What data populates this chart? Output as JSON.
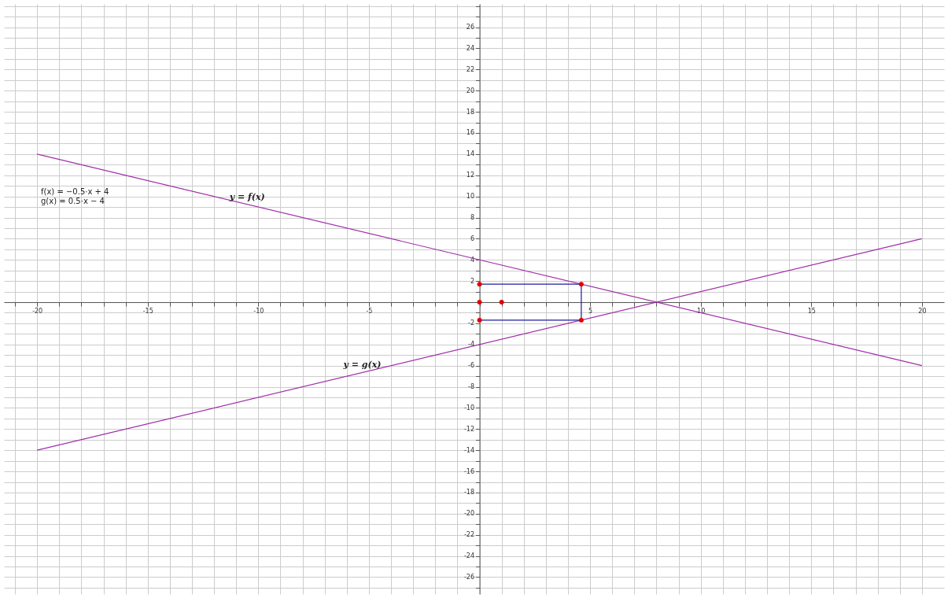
{
  "chart_data": {
    "type": "line",
    "series": [
      {
        "color": "#a030a8",
        "x": [
          -20,
          20
        ],
        "values": [
          14,
          -6
        ]
      },
      {
        "color": "#a030a8",
        "x": [
          -20,
          20
        ],
        "values": [
          -14,
          6
        ]
      },
      {
        "color": "#1c1ca0",
        "x": [
          0,
          4.6,
          4.6,
          0
        ],
        "values": [
          1.7,
          1.7,
          -1.7,
          -1.7
        ]
      },
      {
        "type": "scatter",
        "color": "#e00000",
        "marker": "circle",
        "x": [
          0,
          4.6,
          4.6,
          0,
          0,
          1
        ],
        "values": [
          1.7,
          1.7,
          -1.7,
          -1.7,
          0,
          0
        ]
      }
    ],
    "annotations": [
      "f(x) = −0.5·x + 4",
      "g(x) = 0.5·x − 4",
      {
        "text": "y = f(x)",
        "x": -10.5,
        "y": 9.25
      },
      {
        "text": "y = g(x)",
        "x": -5.3,
        "y": -6.65
      }
    ],
    "xlim": [
      -21.5,
      21
    ],
    "ylim": [
      -27.6,
      28.2
    ],
    "xticks": [
      {
        "value": -21,
        "label": null
      },
      -20,
      {
        "value": -19,
        "label": null
      },
      {
        "value": -18,
        "label": null
      },
      {
        "value": -17,
        "label": null
      },
      {
        "value": -16,
        "label": null
      },
      -15,
      {
        "value": -14,
        "label": null
      },
      {
        "value": -13,
        "label": null
      },
      {
        "value": -12,
        "label": null
      },
      {
        "value": -11,
        "label": null
      },
      -10,
      {
        "value": -9,
        "label": null
      },
      {
        "value": -8,
        "label": null
      },
      {
        "value": -7,
        "label": null
      },
      {
        "value": -6,
        "label": null
      },
      -5,
      {
        "value": -4,
        "label": null
      },
      {
        "value": -3,
        "label": null
      },
      {
        "value": -2,
        "label": null
      },
      {
        "value": -1,
        "label": null
      },
      {
        "value": 0,
        "label": null
      },
      {
        "value": 1,
        "label": null
      },
      {
        "value": 2,
        "label": null
      },
      {
        "value": 3,
        "label": null
      },
      {
        "value": 4,
        "label": null
      },
      5,
      {
        "value": 6,
        "label": null
      },
      {
        "value": 7,
        "label": null
      },
      {
        "value": 8,
        "label": null
      },
      {
        "value": 9,
        "label": null
      },
      10,
      {
        "value": 11,
        "label": null
      },
      {
        "value": 12,
        "label": null
      },
      {
        "value": 13,
        "label": null
      },
      {
        "value": 14,
        "label": null
      },
      15,
      {
        "value": 16,
        "label": null
      },
      {
        "value": 17,
        "label": null
      },
      {
        "value": 18,
        "label": null
      },
      {
        "value": 19,
        "label": null
      },
      20
    ],
    "yticks": [
      {
        "value": -27,
        "label": null
      },
      -26,
      {
        "value": -25,
        "label": null
      },
      -24,
      {
        "value": -23,
        "label": null
      },
      -22,
      {
        "value": -21,
        "label": null
      },
      -20,
      {
        "value": -19,
        "label": null
      },
      -18,
      {
        "value": -17,
        "label": null
      },
      -16,
      {
        "value": -15,
        "label": null
      },
      -14,
      {
        "value": -13,
        "label": null
      },
      -12,
      {
        "value": -11,
        "label": null
      },
      -10,
      {
        "value": -9,
        "label": null
      },
      -8,
      {
        "value": -7,
        "label": null
      },
      -6,
      {
        "value": -5,
        "label": null
      },
      -4,
      {
        "value": -3,
        "label": null
      },
      -2,
      {
        "value": -1,
        "label": null
      },
      {
        "value": 0,
        "label": null
      },
      {
        "value": 1,
        "label": null
      },
      2,
      {
        "value": 3,
        "label": null
      },
      4,
      {
        "value": 5,
        "label": null
      },
      6,
      {
        "value": 7,
        "label": null
      },
      8,
      {
        "value": 9,
        "label": null
      },
      10,
      {
        "value": 11,
        "label": null
      },
      12,
      {
        "value": 13,
        "label": null
      },
      14,
      {
        "value": 15,
        "label": null
      },
      16,
      {
        "value": 17,
        "label": null
      },
      18,
      {
        "value": 19,
        "label": null
      },
      20,
      {
        "value": 21,
        "label": null
      },
      22,
      {
        "value": 23,
        "label": null
      },
      24,
      {
        "value": 25,
        "label": null
      },
      26,
      {
        "value": 27,
        "label": null
      },
      {
        "value": 28,
        "label": null
      }
    ],
    "grid": true
  }
}
